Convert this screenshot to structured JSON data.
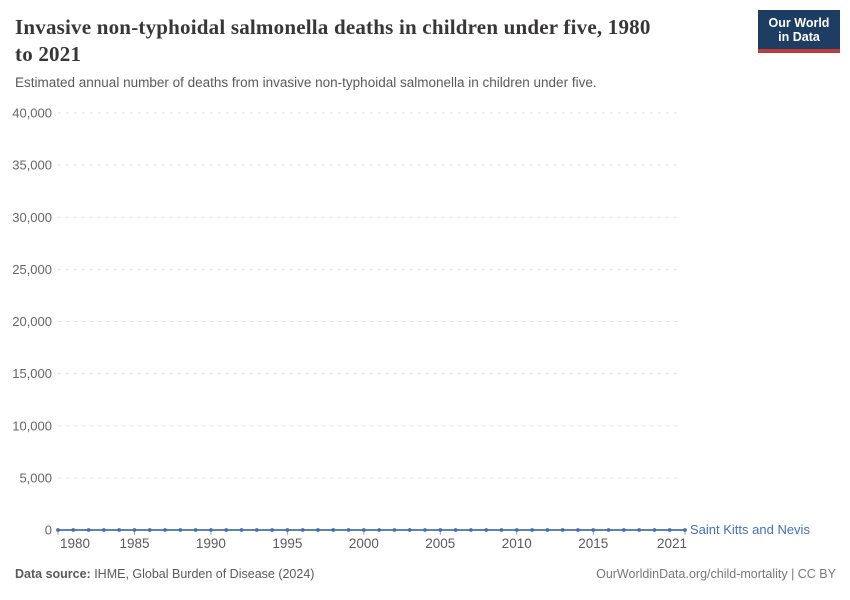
{
  "header": {
    "title": "Invasive non-typhoidal salmonella deaths in children under five, 1980 to 2021",
    "title_lines": [
      "Invasive non-typhoidal salmonella deaths in children under five, 1980",
      "to 2021"
    ],
    "subtitle": "Estimated annual number of deaths from invasive non-typhoidal salmonella in children under five.",
    "logo": {
      "line1": "Our World",
      "line2": "in Data",
      "bg_color": "#1d3d63",
      "accent_color": "#bf3b3b"
    }
  },
  "chart_data": {
    "type": "line",
    "title": "Invasive non-typhoidal salmonella deaths in children under five, 1980 to 2021",
    "xlabel": "",
    "ylabel": "",
    "ylim": [
      0,
      40000
    ],
    "grid": "horizontal-dashed",
    "legend_position": "right-of-line-end",
    "yticks": [
      0,
      5000,
      10000,
      15000,
      20000,
      25000,
      30000,
      35000,
      40000
    ],
    "ytick_labels": [
      "0",
      "5,000",
      "10,000",
      "15,000",
      "20,000",
      "25,000",
      "30,000",
      "35,000",
      "40,000"
    ],
    "xticks": [
      1980,
      1985,
      1990,
      1995,
      2000,
      2005,
      2010,
      2015,
      2021
    ],
    "x": [
      1980,
      1981,
      1982,
      1983,
      1984,
      1985,
      1986,
      1987,
      1988,
      1989,
      1990,
      1991,
      1992,
      1993,
      1994,
      1995,
      1996,
      1997,
      1998,
      1999,
      2000,
      2001,
      2002,
      2003,
      2004,
      2005,
      2006,
      2007,
      2008,
      2009,
      2010,
      2011,
      2012,
      2013,
      2014,
      2015,
      2016,
      2017,
      2018,
      2019,
      2020,
      2021
    ],
    "series": [
      {
        "name": "Saint Kitts and Nevis",
        "color": "#4470b4",
        "values": [
          0,
          0,
          0,
          0,
          0,
          0,
          0,
          0,
          0,
          0,
          0,
          0,
          0,
          0,
          0,
          0,
          0,
          0,
          0,
          0,
          0,
          0,
          0,
          0,
          0,
          0,
          0,
          0,
          0,
          0,
          0,
          0,
          0,
          0,
          0,
          0,
          0,
          0,
          0,
          0,
          0,
          0
        ]
      }
    ],
    "colors": {
      "gridline": "#e3e3e3",
      "zero_line": "#c6c6c6",
      "tick_text": "#666666",
      "x_tick_text": "#5b5b5b"
    }
  },
  "footer": {
    "source_label": "Data source:",
    "source_text": " IHME, Global Burden of Disease (2024)",
    "credit": "OurWorldinData.org/child-mortality | CC BY"
  }
}
